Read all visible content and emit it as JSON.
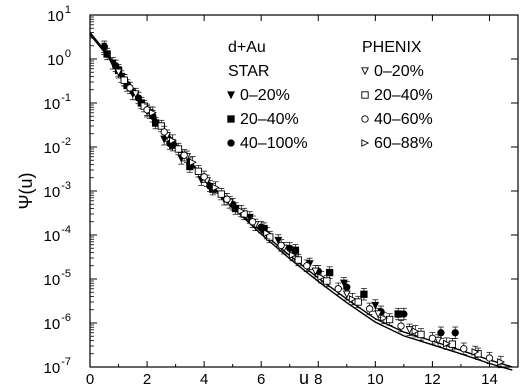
{
  "chart_data": {
    "type": "scatter",
    "title": "",
    "xlabel": "u",
    "ylabel": "Ψ(u)",
    "xlim": [
      0,
      15
    ],
    "ylim": [
      1e-07,
      10
    ],
    "yscale": "log",
    "grid": false,
    "x_ticks": [
      "0",
      "2",
      "4",
      "6",
      "8",
      "10",
      "12",
      "14"
    ],
    "y_ticks": [
      {
        "base": "10",
        "exp": "1"
      },
      {
        "base": "10",
        "exp": "0"
      },
      {
        "base": "10",
        "exp": "-1"
      },
      {
        "base": "10",
        "exp": "-2"
      },
      {
        "base": "10",
        "exp": "-3"
      },
      {
        "base": "10",
        "exp": "-4"
      },
      {
        "base": "10",
        "exp": "-5"
      },
      {
        "base": "10",
        "exp": "-6"
      },
      {
        "base": "10",
        "exp": "-7"
      }
    ],
    "legend": {
      "placement": "top-right",
      "system_label": "d+Au",
      "groups": [
        {
          "title": "STAR",
          "entries": [
            {
              "label": "0–20%",
              "marker": "triangle-down-filled"
            },
            {
              "label": "20–40%",
              "marker": "square-filled"
            },
            {
              "label": "40–100%",
              "marker": "circle-filled"
            }
          ]
        },
        {
          "title": "PHENIX",
          "entries": [
            {
              "label": "0–20%",
              "marker": "triangle-down-open"
            },
            {
              "label": "20–40%",
              "marker": "square-open"
            },
            {
              "label": "40–60%",
              "marker": "circle-open"
            },
            {
              "label": "60–88%",
              "marker": "triangle-right-open"
            }
          ]
        }
      ]
    },
    "curves": [
      {
        "style": "solid",
        "x": [
          0,
          0.5,
          1,
          1.5,
          2,
          3,
          4,
          5,
          6,
          7,
          8,
          9,
          10,
          11,
          12,
          13,
          14,
          14.8
        ],
        "y": [
          4.0,
          1.6,
          0.6,
          0.22,
          0.08,
          0.012,
          0.002,
          0.00045,
          0.00012,
          3.4e-05,
          1.05e-05,
          3.5e-06,
          1.25e-06,
          6.2e-07,
          3.9e-07,
          2.4e-07,
          1.45e-07,
          1e-07
        ]
      },
      {
        "style": "solid",
        "x": [
          0,
          0.5,
          1,
          1.5,
          2,
          3,
          4,
          5,
          6,
          7,
          8,
          9,
          10,
          11,
          12,
          13,
          14,
          14.8
        ],
        "y": [
          3.6,
          1.45,
          0.55,
          0.2,
          0.072,
          0.011,
          0.0019,
          0.00042,
          0.000105,
          2.9e-05,
          8.8e-06,
          2.9e-06,
          1.05e-06,
          5.1e-07,
          3.2e-07,
          2e-07,
          1.2e-07,
          8.5e-08
        ]
      }
    ],
    "series": [
      {
        "marker": "triangle-down-filled",
        "x": [
          0.5,
          0.8,
          1.1,
          1.5,
          2.0,
          2.6,
          3.2,
          3.9,
          4.7,
          5.6,
          6.6,
          7.7,
          8.9,
          10.0
        ],
        "y": [
          1.7,
          0.8,
          0.4,
          0.16,
          0.065,
          0.015,
          0.0055,
          0.0018,
          0.00065,
          0.00025,
          7.5e-05,
          2.2e-05,
          8e-06,
          2.5e-06
        ]
      },
      {
        "marker": "square-filled",
        "x": [
          0.6,
          1.0,
          1.3,
          1.8,
          2.3,
          2.9,
          3.5,
          4.3,
          5.1,
          6.1,
          7.2,
          8.4,
          9.6,
          10.8
        ],
        "y": [
          1.3,
          0.55,
          0.25,
          0.1,
          0.035,
          0.011,
          0.0036,
          0.0011,
          0.0004,
          0.00014,
          4.5e-05,
          1.4e-05,
          4.5e-06,
          1.6e-06
        ]
      },
      {
        "marker": "circle-filled",
        "x": [
          0.5,
          0.9,
          1.2,
          1.7,
          2.2,
          2.8,
          3.5,
          4.2,
          5.0,
          6.0,
          7.0,
          8.0,
          9.0,
          10.2,
          11.0,
          12.3,
          12.8
        ],
        "y": [
          1.9,
          0.7,
          0.33,
          0.13,
          0.05,
          0.012,
          0.0042,
          0.0013,
          0.0005,
          0.00015,
          5e-05,
          1.5e-05,
          6.5e-06,
          1.8e-06,
          1.6e-06,
          6e-07,
          6e-07
        ]
      },
      {
        "marker": "triangle-down-open",
        "x": [
          1.0,
          1.6,
          2.1,
          2.7,
          3.4,
          4.1,
          4.9,
          5.8,
          6.8,
          7.9,
          9.0,
          10.1,
          11.2,
          12.2
        ],
        "y": [
          0.5,
          0.16,
          0.06,
          0.018,
          0.006,
          0.0017,
          0.00055,
          0.00017,
          5e-05,
          1.5e-05,
          4.5e-06,
          1.6e-06,
          7e-07,
          4e-07
        ]
      },
      {
        "marker": "square-open",
        "x": [
          1.2,
          1.9,
          2.5,
          3.1,
          3.8,
          4.6,
          5.4,
          6.3,
          7.3,
          8.3,
          9.4,
          10.5,
          11.6,
          12.7,
          13.6
        ],
        "y": [
          0.33,
          0.085,
          0.03,
          0.009,
          0.0028,
          0.00085,
          0.0003,
          9e-05,
          2.7e-05,
          9e-06,
          3e-06,
          1.2e-06,
          5.5e-07,
          3.3e-07,
          2e-07
        ]
      },
      {
        "marker": "circle-open",
        "x": [
          1.4,
          2.0,
          2.6,
          3.3,
          4.0,
          4.8,
          5.7,
          6.7,
          7.6,
          8.7,
          9.8,
          10.9,
          12.0,
          13.1,
          14.0
        ],
        "y": [
          0.22,
          0.07,
          0.022,
          0.0065,
          0.0021,
          0.00065,
          0.0002,
          5.8e-05,
          2e-05,
          6e-06,
          2.1e-06,
          8.5e-07,
          4.5e-07,
          2.6e-07,
          1.6e-07
        ]
      },
      {
        "marker": "triangle-right-open",
        "x": [
          2.2,
          2.9,
          3.6,
          4.4,
          5.3,
          6.2,
          7.1,
          8.1,
          9.2,
          10.3,
          11.4,
          12.5,
          13.5,
          14.4
        ],
        "y": [
          0.06,
          0.014,
          0.0045,
          0.0012,
          0.00035,
          0.00011,
          3.5e-05,
          1.1e-05,
          3.5e-06,
          1.3e-06,
          6.5e-07,
          3.4e-07,
          2.2e-07,
          1.3e-07
        ]
      }
    ]
  }
}
